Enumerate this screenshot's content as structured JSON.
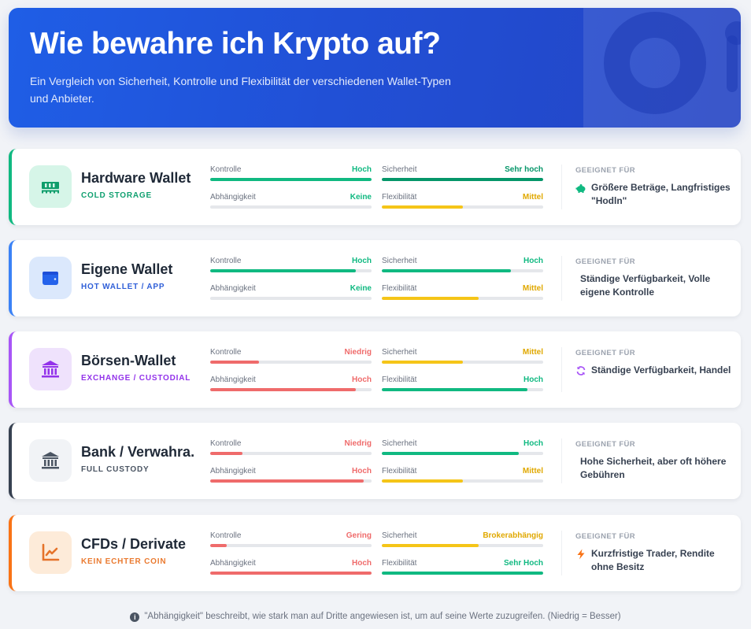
{
  "header": {
    "title": "Wie bewahre ich Krypto auf?",
    "subtitle": "Ein Vergleich von Sicherheit, Kontrolle und Flexibilität der verschiedenen Wallet-Typen und Anbieter."
  },
  "labels": {
    "kontrolle": "Kontrolle",
    "abhaengigkeit": "Abhängigkeit",
    "sicherheit": "Sicherheit",
    "flexibilitaet": "Flexibilität",
    "suited_for": "GEEIGNET FÜR"
  },
  "colors": {
    "green": "#10b981",
    "dark_green": "#059669",
    "red": "#ef6b6b",
    "yellow": "#f5c518",
    "blue": "#2563eb",
    "purple": "#9333ea",
    "slate": "#374151",
    "orange": "#f97316"
  },
  "wallets": [
    {
      "name": "Hardware Wallet",
      "tag": "COLD STORAGE",
      "icon": "memory-chip-icon",
      "accent": "#10b981",
      "tag_color": "#10a070",
      "icon_bg": "#d6f5e8",
      "kontrolle": {
        "value": "Hoch",
        "percent": 100,
        "color": "#10b981"
      },
      "abhaengigkeit": {
        "value": "Keine",
        "percent": 0,
        "color": "#10b981"
      },
      "sicherheit": {
        "value": "Sehr hoch",
        "percent": 100,
        "color": "#059669"
      },
      "flexibilitaet": {
        "value": "Mittel",
        "percent": 50,
        "color": "#f5c518"
      },
      "suited_icon": "piggy-bank-icon",
      "suited_for": "Größere Beträge, Langfristiges \"Hodln\""
    },
    {
      "name": "Eigene Wallet",
      "tag": "HOT WALLET / APP",
      "icon": "wallet-icon",
      "accent": "#3b82f6",
      "tag_color": "#2f5fd8",
      "icon_bg": "#dbe8fc",
      "kontrolle": {
        "value": "Hoch",
        "percent": 90,
        "color": "#10b981"
      },
      "abhaengigkeit": {
        "value": "Keine",
        "percent": 0,
        "color": "#10b981"
      },
      "sicherheit": {
        "value": "Hoch",
        "percent": 80,
        "color": "#10b981"
      },
      "flexibilitaet": {
        "value": "Mittel",
        "percent": 60,
        "color": "#f5c518"
      },
      "suited_icon": "",
      "suited_for": "Ständige Verfügbarkeit, Volle eigene Kontrolle"
    },
    {
      "name": "Börsen-Wallet",
      "tag": "EXCHANGE / CUSTODIAL",
      "icon": "bank-building-icon",
      "accent": "#a855f7",
      "tag_color": "#9333ea",
      "icon_bg": "#efe2fc",
      "kontrolle": {
        "value": "Niedrig",
        "percent": 30,
        "color": "#ef6b6b"
      },
      "abhaengigkeit": {
        "value": "Hoch",
        "percent": 90,
        "color": "#ef6b6b"
      },
      "sicherheit": {
        "value": "Mittel",
        "percent": 50,
        "color": "#f5c518"
      },
      "flexibilitaet": {
        "value": "Hoch",
        "percent": 90,
        "color": "#10b981"
      },
      "suited_icon": "sync-arrows-icon",
      "suited_for": "Ständige Verfügbarkeit, Handel"
    },
    {
      "name": "Bank / Verwahra.",
      "tag": "FULL CUSTODY",
      "icon": "bank-building-icon",
      "accent": "#374151",
      "tag_color": "#4b5563",
      "icon_bg": "#f1f3f6",
      "kontrolle": {
        "value": "Niedrig",
        "percent": 20,
        "color": "#ef6b6b"
      },
      "abhaengigkeit": {
        "value": "Hoch",
        "percent": 95,
        "color": "#ef6b6b"
      },
      "sicherheit": {
        "value": "Hoch",
        "percent": 85,
        "color": "#10b981"
      },
      "flexibilitaet": {
        "value": "Mittel",
        "percent": 50,
        "color": "#f5c518"
      },
      "suited_icon": "",
      "suited_for": "Hohe Sicherheit, aber oft höhere Gebühren"
    },
    {
      "name": "CFDs / Derivate",
      "tag": "KEIN ECHTER COIN",
      "icon": "line-chart-icon",
      "accent": "#f97316",
      "tag_color": "#ea7a30",
      "icon_bg": "#fdebd9",
      "kontrolle": {
        "value": "Gering",
        "percent": 10,
        "color": "#ef6b6b"
      },
      "abhaengigkeit": {
        "value": "Hoch",
        "percent": 100,
        "color": "#ef6b6b"
      },
      "sicherheit": {
        "value": "Brokerabhängig",
        "percent": 60,
        "color": "#f5c518"
      },
      "flexibilitaet": {
        "value": "Sehr Hoch",
        "percent": 100,
        "color": "#10b981"
      },
      "suited_icon": "lightning-bolt-icon",
      "suited_for": "Kurzfristige Trader, Rendite ohne Besitz"
    }
  ],
  "footnote": {
    "icon": "info-icon",
    "text": "\"Abhängigkeit\" beschreibt, wie stark man auf Dritte angewiesen ist, um auf seine Werte zuzugreifen. (Niedrig = Besser)"
  }
}
